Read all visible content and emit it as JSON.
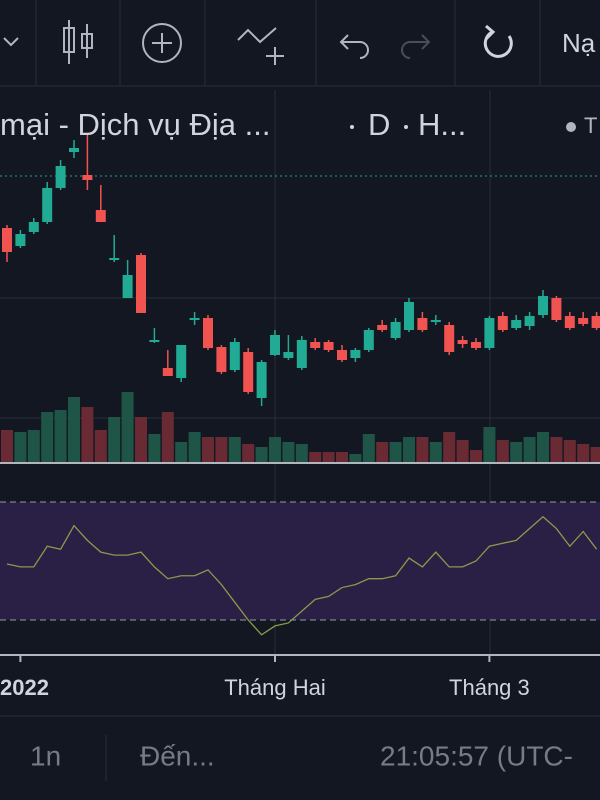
{
  "toolbar": {
    "button": "Nạ"
  },
  "header": {
    "symbol": "mại - Dịch vụ Địa ...",
    "interval": "D",
    "exchange": "H...",
    "status": "T"
  },
  "chart_data": {
    "type": "candlestick",
    "categories": [
      null,
      "2022",
      null,
      null,
      null,
      null,
      null,
      null,
      null,
      null,
      null,
      null,
      null,
      null,
      null,
      null,
      null,
      null,
      null,
      null,
      "Tháng Hai",
      null,
      null,
      null,
      null,
      null,
      null,
      null,
      null,
      null,
      null,
      null,
      null,
      null,
      null,
      null,
      "Tháng 3",
      null,
      null,
      null,
      null,
      null,
      null,
      null,
      null
    ],
    "open": [
      242,
      224,
      238,
      248,
      282,
      318,
      295,
      260,
      210,
      172,
      215,
      128,
      102,
      92,
      150,
      152,
      123,
      100,
      118,
      72,
      115,
      112,
      102,
      128,
      128,
      120,
      112,
      120,
      145,
      132,
      140,
      152,
      148,
      145,
      130,
      128,
      122,
      154,
      142,
      144,
      155,
      172,
      154,
      152,
      154
    ],
    "high": [
      245,
      240,
      252,
      288,
      310,
      330,
      335,
      285,
      235,
      210,
      217,
      142,
      120,
      125,
      158,
      155,
      125,
      132,
      122,
      110,
      140,
      135,
      134,
      132,
      130,
      125,
      122,
      142,
      150,
      152,
      172,
      158,
      155,
      148,
      134,
      132,
      154,
      158,
      155,
      158,
      180,
      174,
      158,
      158,
      158
    ],
    "low": [
      208,
      222,
      236,
      246,
      280,
      312,
      280,
      248,
      208,
      172,
      157,
      127,
      94,
      88,
      145,
      120,
      96,
      98,
      76,
      64,
      114,
      110,
      100,
      120,
      118,
      108,
      108,
      118,
      138,
      130,
      138,
      138,
      145,
      115,
      122,
      120,
      120,
      138,
      140,
      140,
      152,
      148,
      140,
      144,
      140
    ],
    "close": [
      218,
      236,
      248,
      282,
      304,
      322,
      290,
      248,
      212,
      195,
      157,
      130,
      94,
      125,
      152,
      122,
      98,
      128,
      78,
      108,
      135,
      118,
      130,
      122,
      120,
      110,
      120,
      140,
      140,
      148,
      168,
      140,
      150,
      118,
      126,
      122,
      152,
      140,
      150,
      154,
      174,
      150,
      142,
      146,
      142
    ],
    "volume": [
      32,
      30,
      32,
      50,
      52,
      65,
      55,
      32,
      45,
      70,
      45,
      28,
      50,
      20,
      30,
      25,
      25,
      25,
      18,
      15,
      25,
      20,
      18,
      10,
      10,
      10,
      8,
      28,
      20,
      20,
      25,
      25,
      20,
      30,
      22,
      12,
      35,
      22,
      20,
      25,
      30,
      25,
      22,
      18,
      15
    ],
    "rsi": [
      49,
      48,
      48,
      55,
      54,
      62,
      57,
      53,
      52,
      52,
      53,
      48,
      44,
      45,
      45,
      47,
      42,
      36,
      30,
      25,
      28,
      29,
      33,
      37,
      38,
      41,
      42,
      44,
      44,
      45,
      51,
      48,
      53,
      48,
      48,
      50,
      55,
      56,
      57,
      61,
      65,
      61,
      55,
      60,
      54
    ],
    "rsi_bands": [
      70,
      30
    ],
    "up_color": "#22ab94",
    "down_color": "#f05350",
    "up_volume_color": "#1e5547",
    "down_volume_color": "#6a2a33",
    "rsi_color": "#8a9a4a",
    "rsi_fill": "#2a1f45"
  },
  "footer": {
    "range": "1n",
    "goto": "Đến...",
    "clock": "21:05:57 (UTC-"
  }
}
